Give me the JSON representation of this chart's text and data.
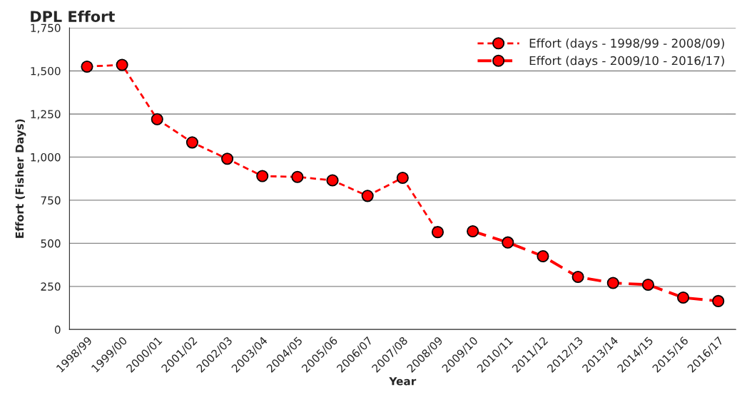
{
  "chart_data": {
    "type": "line",
    "title": "DPL Effort",
    "xlabel": "Year",
    "ylabel": "Effort (Fisher Days)",
    "categories": [
      "1998/99",
      "1999/00",
      "2000/01",
      "2001/02",
      "2002/03",
      "2003/04",
      "2004/05",
      "2005/06",
      "2006/07",
      "2007/08",
      "2008/09",
      "2009/10",
      "2010/11",
      "2011/12",
      "2012/13",
      "2013/14",
      "2014/15",
      "2015/16",
      "2016/17"
    ],
    "series": [
      {
        "name": "Effort (days - 1998/99 - 2008/09)",
        "color": "#ff0000",
        "line_style": "dashed",
        "values": [
          1525,
          1535,
          1220,
          1085,
          990,
          890,
          885,
          865,
          775,
          880,
          565,
          null,
          null,
          null,
          null,
          null,
          null,
          null,
          null
        ]
      },
      {
        "name": "Effort (days - 2009/10 - 2016/17)",
        "color": "#ff0000",
        "line_style": "dashed",
        "values": [
          null,
          null,
          null,
          null,
          null,
          null,
          null,
          null,
          null,
          null,
          null,
          570,
          505,
          425,
          305,
          270,
          260,
          185,
          165
        ]
      }
    ],
    "ylim": [
      0,
      1750
    ],
    "yticks": [
      {
        "value": 0,
        "label": "0"
      },
      {
        "value": 250,
        "label": "250"
      },
      {
        "value": 500,
        "label": "500"
      },
      {
        "value": 750,
        "label": "750"
      },
      {
        "value": 1000,
        "label": "1,000"
      },
      {
        "value": 1250,
        "label": "1,250"
      },
      {
        "value": 1500,
        "label": "1,500"
      },
      {
        "value": 1750,
        "label": "1,750"
      }
    ],
    "grid": "y",
    "legend": "top right",
    "marker": "circle"
  }
}
